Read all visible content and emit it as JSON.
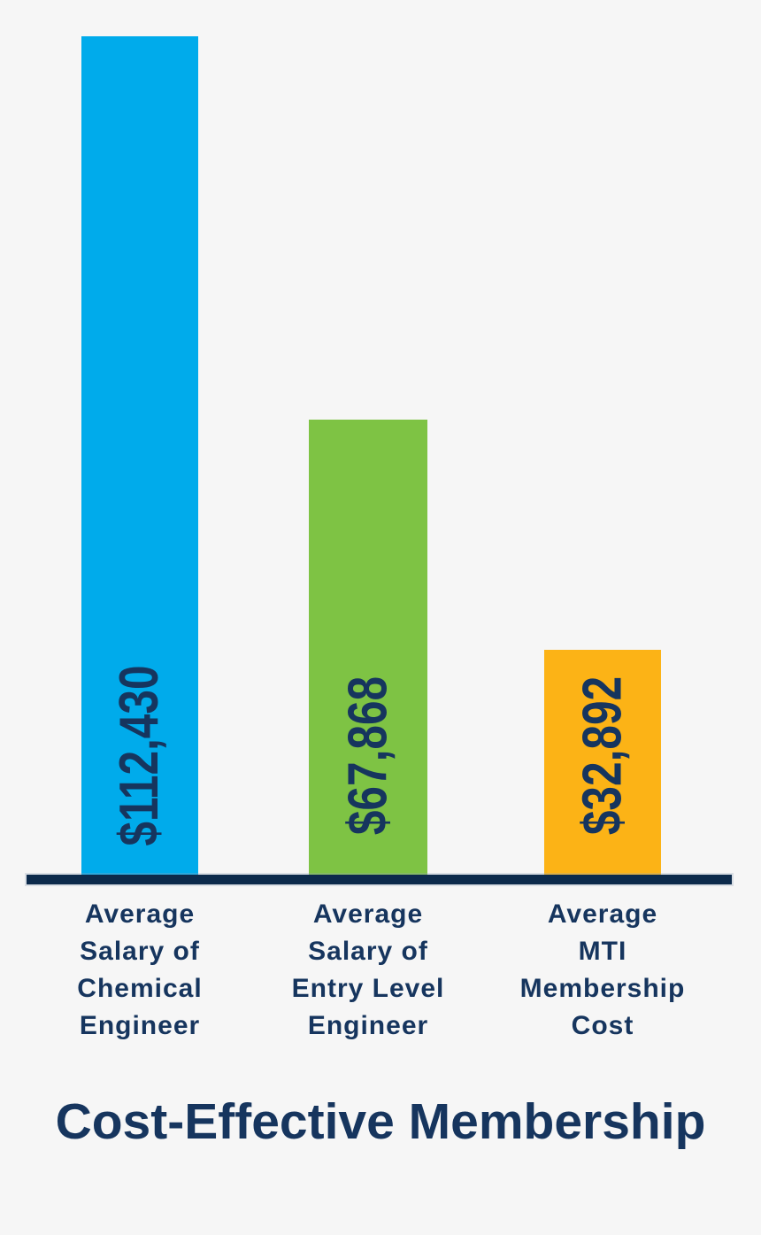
{
  "chart_data": {
    "type": "bar",
    "title": "Cost-Effective Membership",
    "xlabel": "",
    "ylabel": "",
    "grid": false,
    "legend": "none",
    "axis_color": "#0C2A4B",
    "text_color": "#16355E",
    "background_color": "#F6F6F6",
    "categories": [
      "Average Salary of Chemical Engineer",
      "Average Salary of Entry Level Engineer",
      "Average MTI Membership Cost"
    ],
    "values": [
      112430,
      67868,
      32892
    ],
    "bars": [
      {
        "category_lines": "Average\nSalary of\nChemical\nEngineer",
        "value": 112430,
        "value_label": "$112,430",
        "color": "#00ABEB"
      },
      {
        "category_lines": "Average\nSalary of\nEntry Level\nEngineer",
        "value": 67868,
        "value_label": "$67,868",
        "color": "#7EC344"
      },
      {
        "category_lines": "Average\nMTI\nMembership\nCost",
        "value": 32892,
        "value_label": "$32,892",
        "color": "#FCB316"
      }
    ]
  }
}
